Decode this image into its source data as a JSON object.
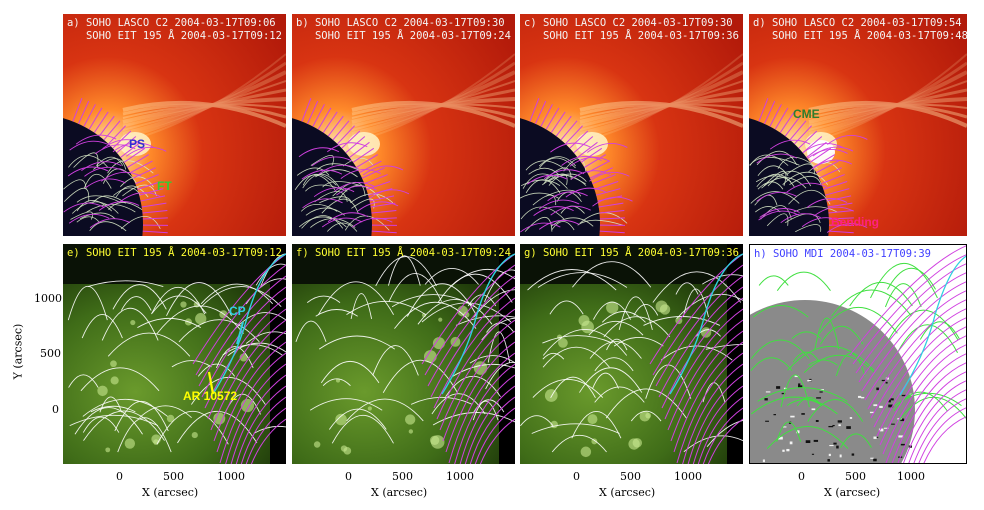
{
  "top_row": [
    {
      "id": "a",
      "line1": "a) SOHO LASCO C2 2004-03-17T09:06",
      "line2": "   SOHO EIT 195 Å 2004-03-17T09:12"
    },
    {
      "id": "b",
      "line1": "b) SOHO LASCO C2 2004-03-17T09:30",
      "line2": "   SOHO EIT 195 Å 2004-03-17T09:24"
    },
    {
      "id": "c",
      "line1": "c) SOHO LASCO C2 2004-03-17T09:30",
      "line2": "   SOHO EIT 195 Å 2004-03-17T09:36"
    },
    {
      "id": "d",
      "line1": "d) SOHO LASCO C2 2004-03-17T09:54",
      "line2": "   SOHO EIT 195 Å 2004-03-17T09:48"
    }
  ],
  "bottom_row": [
    {
      "id": "e",
      "label": "e) SOHO EIT 195 Å 2004-03-17T09:12"
    },
    {
      "id": "f",
      "label": "f) SOHO EIT 195 Å 2004-03-17T09:24"
    },
    {
      "id": "g",
      "label": "g) SOHO EIT 195 Å 2004-03-17T09:36"
    },
    {
      "id": "h",
      "label": "h) SOHO MDI 2004-03-17T09:39"
    }
  ],
  "annotations": {
    "ps": "PS",
    "ft": "FT",
    "cme": "CME",
    "bending": "Bending",
    "cp": "CP",
    "ar": "AR 10572"
  },
  "colors": {
    "ps": "#3030d0",
    "ft": "#33cc33",
    "cme": "#2e7d2e",
    "bending": "#ff2080",
    "cp": "#30d0e0",
    "ar": "#ffff00",
    "field_open": "#d040e0",
    "field_closed": "#ffffff",
    "mdi_closed": "#40e040"
  },
  "axes": {
    "xlabel": "X (arcsec)",
    "ylabel": "Y (arcsec)",
    "xticks": [
      "0",
      "500",
      "1000"
    ],
    "yticks": [
      "1000",
      "500",
      "0"
    ]
  }
}
